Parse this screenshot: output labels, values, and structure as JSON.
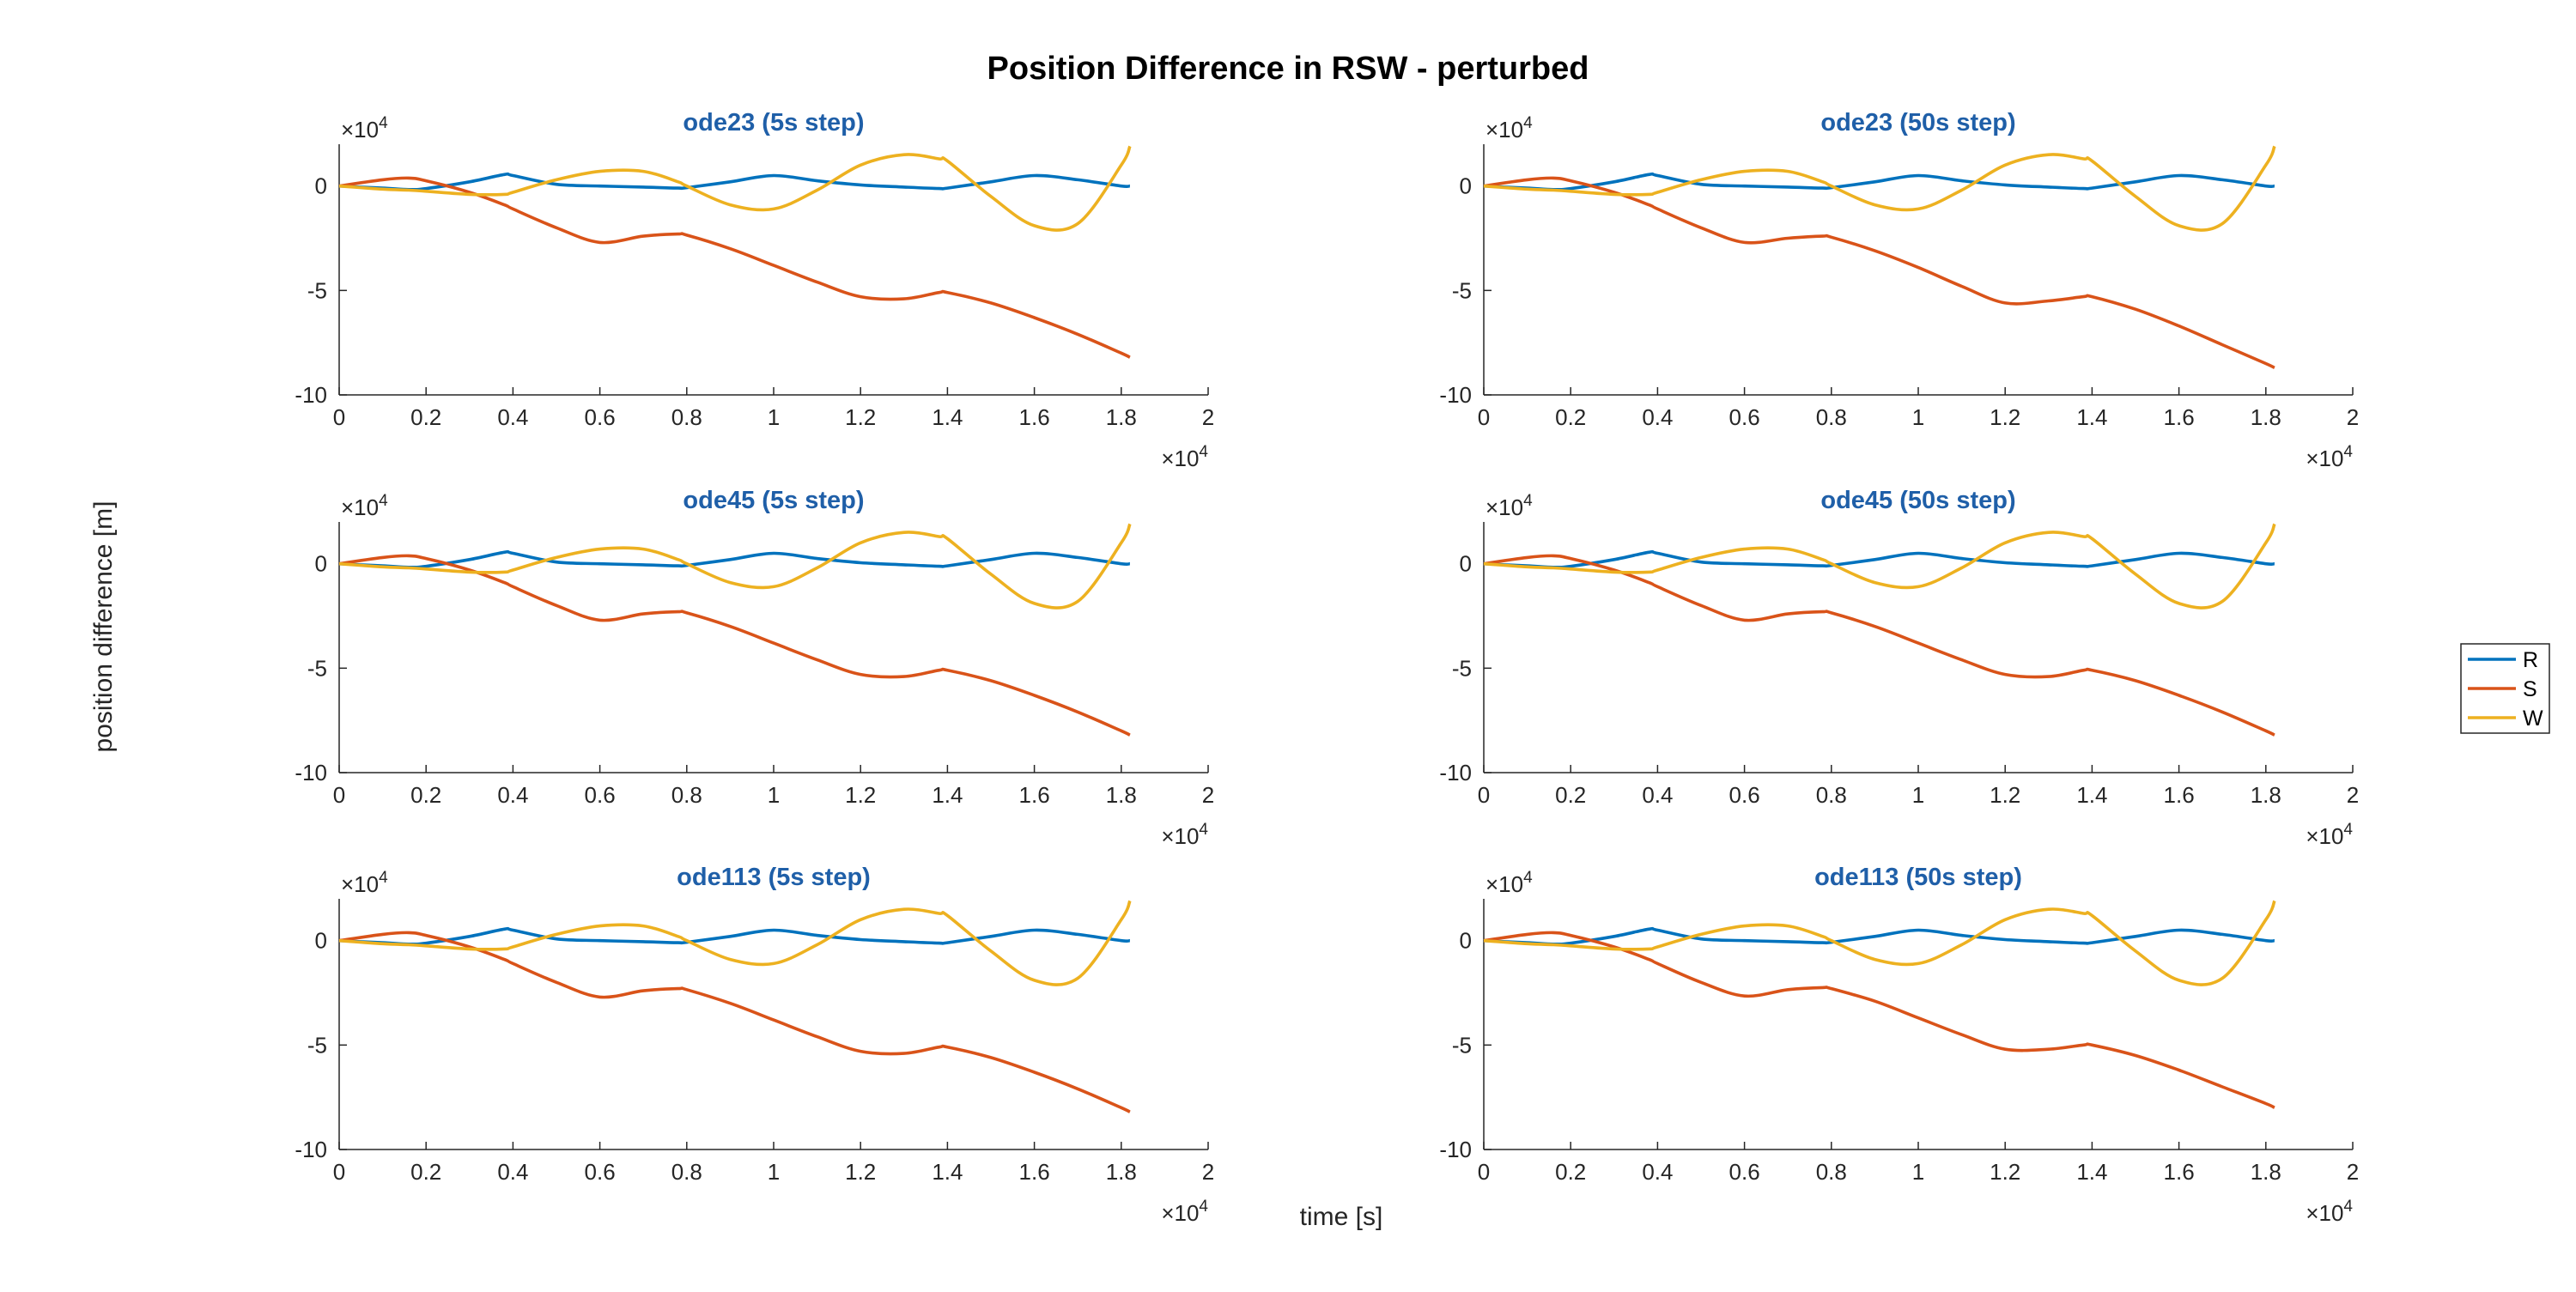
{
  "figure": {
    "title": "Position Difference in RSW - perturbed",
    "xlabel": "time [s]",
    "ylabel": "position difference [m]"
  },
  "colors": {
    "R": "#0072BD",
    "S": "#D95319",
    "W": "#EDB120",
    "subplot_title": "#1f5fa8",
    "axis": "#262626"
  },
  "legend": {
    "placement": "right",
    "entries": [
      "R",
      "S",
      "W"
    ]
  },
  "axis_common": {
    "x_exponent_label": "×10",
    "x_exponent": "4",
    "y_exponent_label": "×10",
    "y_exponent": "4",
    "xlim": [
      0,
      20000
    ],
    "ylim": [
      -100000,
      20000
    ],
    "xticks": [
      0,
      2000,
      4000,
      6000,
      8000,
      10000,
      12000,
      14000,
      16000,
      18000,
      20000
    ],
    "xtick_labels": [
      "0",
      "0.2",
      "0.4",
      "0.6",
      "0.8",
      "1",
      "1.2",
      "1.4",
      "1.6",
      "1.8",
      "2"
    ],
    "yticks": [
      0,
      -50000,
      -100000
    ],
    "ytick_labels": [
      "0",
      "-5",
      "-10"
    ],
    "grid": false
  },
  "chart_data": [
    {
      "type": "line",
      "title": "ode23 (5s step)",
      "x": [
        0,
        1000,
        1600,
        2000,
        3000,
        3800,
        4000,
        5000,
        6000,
        7000,
        7800,
        8000,
        9000,
        10000,
        11000,
        12000,
        13000,
        13800,
        14000,
        15000,
        16000,
        17000,
        18000,
        18200
      ],
      "series": [
        {
          "name": "R",
          "values": [
            0,
            -1000,
            -1700,
            -1200,
            2000,
            5500,
            5000,
            800,
            0,
            -500,
            -1000,
            -800,
            2000,
            5000,
            2500,
            500,
            -500,
            -1200,
            -1000,
            2000,
            5000,
            3000,
            0,
            0
          ]
        },
        {
          "name": "S",
          "values": [
            0,
            3000,
            3800,
            2500,
            -3000,
            -9000,
            -11000,
            -20000,
            -27000,
            -24000,
            -23000,
            -23500,
            -30000,
            -38000,
            -46000,
            -53000,
            -54000,
            -51000,
            -51000,
            -56000,
            -63000,
            -71000,
            -80000,
            -82000
          ]
        },
        {
          "name": "W",
          "values": [
            0,
            -1500,
            -2000,
            -2500,
            -4000,
            -4000,
            -3000,
            3000,
            7000,
            7000,
            2000,
            0,
            -9000,
            -11000,
            -2000,
            10000,
            15000,
            13000,
            12000,
            -5000,
            -19000,
            -18000,
            10000,
            19000
          ]
        }
      ]
    },
    {
      "type": "line",
      "title": "ode23 (50s step)",
      "x": [
        0,
        1000,
        1600,
        2000,
        3000,
        3800,
        4000,
        5000,
        6000,
        7000,
        7800,
        8000,
        9000,
        10000,
        11000,
        12000,
        13000,
        13800,
        14000,
        15000,
        16000,
        17000,
        18000,
        18200
      ],
      "series": [
        {
          "name": "R",
          "values": [
            0,
            -1000,
            -1700,
            -1200,
            2000,
            5500,
            5000,
            800,
            0,
            -500,
            -1000,
            -800,
            2000,
            5000,
            2500,
            500,
            -500,
            -1200,
            -1000,
            2000,
            5000,
            3000,
            0,
            0
          ]
        },
        {
          "name": "S",
          "values": [
            0,
            3000,
            3800,
            2500,
            -3000,
            -9000,
            -11000,
            -20000,
            -27000,
            -25000,
            -24000,
            -24500,
            -31000,
            -39000,
            -48000,
            -56000,
            -55000,
            -53000,
            -53000,
            -59000,
            -67000,
            -76000,
            -85000,
            -87000
          ]
        },
        {
          "name": "W",
          "values": [
            0,
            -1500,
            -2000,
            -2500,
            -4000,
            -4000,
            -3000,
            3000,
            7000,
            7000,
            2000,
            0,
            -9000,
            -11000,
            -2000,
            10000,
            15000,
            13000,
            12000,
            -5000,
            -19000,
            -18000,
            10000,
            19000
          ]
        }
      ]
    },
    {
      "type": "line",
      "title": "ode45 (5s step)",
      "x": [
        0,
        1000,
        1600,
        2000,
        3000,
        3800,
        4000,
        5000,
        6000,
        7000,
        7800,
        8000,
        9000,
        10000,
        11000,
        12000,
        13000,
        13800,
        14000,
        15000,
        16000,
        17000,
        18000,
        18200
      ],
      "series": [
        {
          "name": "R",
          "values": [
            0,
            -1000,
            -1700,
            -1200,
            2000,
            5500,
            5000,
            800,
            0,
            -500,
            -1000,
            -800,
            2000,
            5000,
            2500,
            500,
            -500,
            -1200,
            -1000,
            2000,
            5000,
            3000,
            0,
            0
          ]
        },
        {
          "name": "S",
          "values": [
            0,
            3000,
            3800,
            2500,
            -3000,
            -9000,
            -11000,
            -20000,
            -27000,
            -24000,
            -23000,
            -23500,
            -30000,
            -38000,
            -46000,
            -53000,
            -54000,
            -51000,
            -51000,
            -56000,
            -63000,
            -71000,
            -80000,
            -82000
          ]
        },
        {
          "name": "W",
          "values": [
            0,
            -1500,
            -2000,
            -2500,
            -4000,
            -4000,
            -3000,
            3000,
            7000,
            7000,
            2000,
            0,
            -9000,
            -11000,
            -2000,
            10000,
            15000,
            13000,
            12000,
            -5000,
            -19000,
            -18000,
            10000,
            19000
          ]
        }
      ]
    },
    {
      "type": "line",
      "title": "ode45 (50s step)",
      "x": [
        0,
        1000,
        1600,
        2000,
        3000,
        3800,
        4000,
        5000,
        6000,
        7000,
        7800,
        8000,
        9000,
        10000,
        11000,
        12000,
        13000,
        13800,
        14000,
        15000,
        16000,
        17000,
        18000,
        18200
      ],
      "series": [
        {
          "name": "R",
          "values": [
            0,
            -1000,
            -1700,
            -1200,
            2000,
            5500,
            5000,
            800,
            0,
            -500,
            -1000,
            -800,
            2000,
            5000,
            2500,
            500,
            -500,
            -1200,
            -1000,
            2000,
            5000,
            3000,
            0,
            0
          ]
        },
        {
          "name": "S",
          "values": [
            0,
            3000,
            3800,
            2500,
            -3000,
            -9000,
            -11000,
            -20000,
            -27000,
            -24000,
            -23000,
            -23500,
            -30000,
            -38000,
            -46000,
            -53000,
            -54000,
            -51000,
            -51000,
            -56000,
            -63000,
            -71000,
            -80000,
            -82000
          ]
        },
        {
          "name": "W",
          "values": [
            0,
            -1500,
            -2000,
            -2500,
            -4000,
            -4000,
            -3000,
            3000,
            7000,
            7000,
            2000,
            0,
            -9000,
            -11000,
            -2000,
            10000,
            15000,
            13000,
            12000,
            -5000,
            -19000,
            -18000,
            10000,
            19000
          ]
        }
      ]
    },
    {
      "type": "line",
      "title": "ode113 (5s step)",
      "x": [
        0,
        1000,
        1600,
        2000,
        3000,
        3800,
        4000,
        5000,
        6000,
        7000,
        7800,
        8000,
        9000,
        10000,
        11000,
        12000,
        13000,
        13800,
        14000,
        15000,
        16000,
        17000,
        18000,
        18200
      ],
      "series": [
        {
          "name": "R",
          "values": [
            0,
            -1000,
            -1700,
            -1200,
            2000,
            5500,
            5000,
            800,
            0,
            -500,
            -1000,
            -800,
            2000,
            5000,
            2500,
            500,
            -500,
            -1200,
            -1000,
            2000,
            5000,
            3000,
            0,
            0
          ]
        },
        {
          "name": "S",
          "values": [
            0,
            3000,
            3800,
            2500,
            -3000,
            -9000,
            -11000,
            -20000,
            -27000,
            -24000,
            -23000,
            -23500,
            -30000,
            -38000,
            -46000,
            -53000,
            -54000,
            -51000,
            -51000,
            -56000,
            -63000,
            -71000,
            -80000,
            -82000
          ]
        },
        {
          "name": "W",
          "values": [
            0,
            -1500,
            -2000,
            -2500,
            -4000,
            -4000,
            -3000,
            3000,
            7000,
            7000,
            2000,
            0,
            -9000,
            -11000,
            -2000,
            10000,
            15000,
            13000,
            12000,
            -5000,
            -19000,
            -18000,
            10000,
            19000
          ]
        }
      ]
    },
    {
      "type": "line",
      "title": "ode113 (50s step)",
      "x": [
        0,
        1000,
        1600,
        2000,
        3000,
        3800,
        4000,
        5000,
        6000,
        7000,
        7800,
        8000,
        9000,
        10000,
        11000,
        12000,
        13000,
        13800,
        14000,
        15000,
        16000,
        17000,
        18000,
        18200
      ],
      "series": [
        {
          "name": "R",
          "values": [
            0,
            -1000,
            -1700,
            -1200,
            2000,
            5500,
            5000,
            800,
            0,
            -500,
            -1000,
            -800,
            2000,
            5000,
            2500,
            500,
            -500,
            -1200,
            -1000,
            2000,
            5000,
            3000,
            0,
            0
          ]
        },
        {
          "name": "S",
          "values": [
            0,
            3000,
            3800,
            2500,
            -3000,
            -9000,
            -11000,
            -20000,
            -26500,
            -23500,
            -22500,
            -23000,
            -29000,
            -37000,
            -45000,
            -52000,
            -52000,
            -50000,
            -50000,
            -55000,
            -62000,
            -70000,
            -78000,
            -80000
          ]
        },
        {
          "name": "W",
          "values": [
            0,
            -1500,
            -2000,
            -2500,
            -4000,
            -4000,
            -3000,
            3000,
            7000,
            7000,
            2000,
            0,
            -9000,
            -11000,
            -2000,
            10000,
            15000,
            13000,
            12000,
            -5000,
            -19000,
            -18000,
            10000,
            19000
          ]
        }
      ]
    }
  ]
}
